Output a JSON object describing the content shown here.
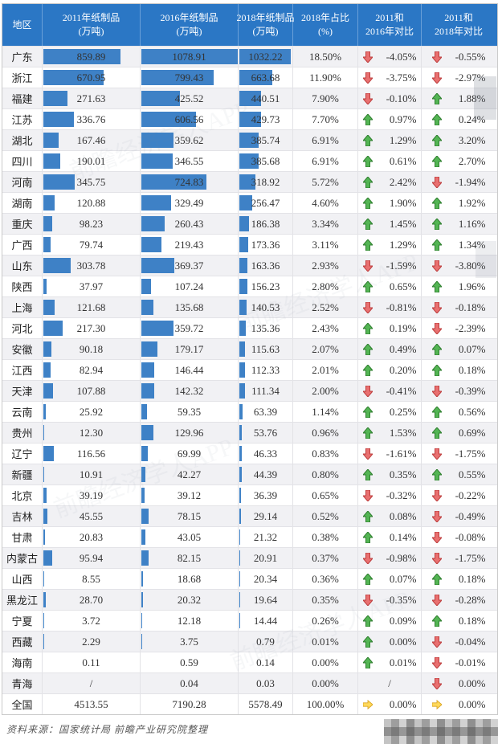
{
  "table": {
    "bar_scale_max": 1078.91,
    "bar_color": "#3E81C6",
    "header_bg": "#2B77C5",
    "up_color": "#4FAE4F",
    "down_color": "#E97070",
    "right_color": "#FFD95A",
    "columns": [
      {
        "id": "region",
        "line1": "地区",
        "line2": ""
      },
      {
        "id": "v2011",
        "line1": "2011年纸制品",
        "line2": "(万吨)"
      },
      {
        "id": "v2016",
        "line1": "2016年纸制品",
        "line2": "(万吨)"
      },
      {
        "id": "v2018",
        "line1": "2018年纸制品",
        "line2": "(万吨)"
      },
      {
        "id": "share",
        "line1": "2018年占比",
        "line2": "(%)"
      },
      {
        "id": "cmp2016",
        "line1": "2011和",
        "line2": "2016年对比"
      },
      {
        "id": "cmp2018",
        "line1": "2011和",
        "line2": "2018年对比"
      }
    ],
    "rows": [
      {
        "region": "广东",
        "v2011": "859.89",
        "v2016": "1078.91",
        "v2018": "1032.22",
        "share": "18.50%",
        "cmp2016": {
          "dir": "down",
          "val": "-4.05%"
        },
        "cmp2018": {
          "dir": "down",
          "val": "-0.55%"
        }
      },
      {
        "region": "浙江",
        "v2011": "670.95",
        "v2016": "799.43",
        "v2018": "663.68",
        "share": "11.90%",
        "cmp2016": {
          "dir": "down",
          "val": "-3.75%"
        },
        "cmp2018": {
          "dir": "down",
          "val": "-2.97%"
        }
      },
      {
        "region": "福建",
        "v2011": "271.63",
        "v2016": "425.52",
        "v2018": "440.51",
        "share": "7.90%",
        "cmp2016": {
          "dir": "down",
          "val": "-0.10%"
        },
        "cmp2018": {
          "dir": "up",
          "val": "1.88%"
        }
      },
      {
        "region": "江苏",
        "v2011": "336.76",
        "v2016": "606.56",
        "v2018": "429.73",
        "share": "7.70%",
        "cmp2016": {
          "dir": "up",
          "val": "0.97%"
        },
        "cmp2018": {
          "dir": "up",
          "val": "0.24%"
        }
      },
      {
        "region": "湖北",
        "v2011": "167.46",
        "v2016": "359.62",
        "v2018": "385.74",
        "share": "6.91%",
        "cmp2016": {
          "dir": "up",
          "val": "1.29%"
        },
        "cmp2018": {
          "dir": "up",
          "val": "3.20%"
        }
      },
      {
        "region": "四川",
        "v2011": "190.01",
        "v2016": "346.55",
        "v2018": "385.68",
        "share": "6.91%",
        "cmp2016": {
          "dir": "up",
          "val": "0.61%"
        },
        "cmp2018": {
          "dir": "up",
          "val": "2.70%"
        }
      },
      {
        "region": "河南",
        "v2011": "345.75",
        "v2016": "724.83",
        "v2018": "318.92",
        "share": "5.72%",
        "cmp2016": {
          "dir": "up",
          "val": "2.42%"
        },
        "cmp2018": {
          "dir": "down",
          "val": "-1.94%"
        }
      },
      {
        "region": "湖南",
        "v2011": "120.88",
        "v2016": "329.49",
        "v2018": "256.47",
        "share": "4.60%",
        "cmp2016": {
          "dir": "up",
          "val": "1.90%"
        },
        "cmp2018": {
          "dir": "up",
          "val": "1.92%"
        }
      },
      {
        "region": "重庆",
        "v2011": "98.23",
        "v2016": "260.43",
        "v2018": "186.38",
        "share": "3.34%",
        "cmp2016": {
          "dir": "up",
          "val": "1.45%"
        },
        "cmp2018": {
          "dir": "up",
          "val": "1.16%"
        }
      },
      {
        "region": "广西",
        "v2011": "79.74",
        "v2016": "219.43",
        "v2018": "173.36",
        "share": "3.11%",
        "cmp2016": {
          "dir": "up",
          "val": "1.29%"
        },
        "cmp2018": {
          "dir": "up",
          "val": "1.34%"
        }
      },
      {
        "region": "山东",
        "v2011": "303.78",
        "v2016": "369.37",
        "v2018": "163.36",
        "share": "2.93%",
        "cmp2016": {
          "dir": "down",
          "val": "-1.59%"
        },
        "cmp2018": {
          "dir": "down",
          "val": "-3.80%"
        }
      },
      {
        "region": "陕西",
        "v2011": "37.97",
        "v2016": "107.24",
        "v2018": "156.23",
        "share": "2.80%",
        "cmp2016": {
          "dir": "up",
          "val": "0.65%"
        },
        "cmp2018": {
          "dir": "up",
          "val": "1.96%"
        }
      },
      {
        "region": "上海",
        "v2011": "121.68",
        "v2016": "135.68",
        "v2018": "140.53",
        "share": "2.52%",
        "cmp2016": {
          "dir": "down",
          "val": "-0.81%"
        },
        "cmp2018": {
          "dir": "down",
          "val": "-0.18%"
        }
      },
      {
        "region": "河北",
        "v2011": "217.30",
        "v2016": "359.72",
        "v2018": "135.36",
        "share": "2.43%",
        "cmp2016": {
          "dir": "up",
          "val": "0.19%"
        },
        "cmp2018": {
          "dir": "down",
          "val": "-2.39%"
        }
      },
      {
        "region": "安徽",
        "v2011": "90.18",
        "v2016": "179.17",
        "v2018": "115.63",
        "share": "2.07%",
        "cmp2016": {
          "dir": "up",
          "val": "0.49%"
        },
        "cmp2018": {
          "dir": "up",
          "val": "0.07%"
        }
      },
      {
        "region": "江西",
        "v2011": "82.94",
        "v2016": "146.44",
        "v2018": "112.33",
        "share": "2.01%",
        "cmp2016": {
          "dir": "up",
          "val": "0.20%"
        },
        "cmp2018": {
          "dir": "up",
          "val": "0.18%"
        }
      },
      {
        "region": "天津",
        "v2011": "107.88",
        "v2016": "142.32",
        "v2018": "111.34",
        "share": "2.00%",
        "cmp2016": {
          "dir": "down",
          "val": "-0.41%"
        },
        "cmp2018": {
          "dir": "down",
          "val": "-0.39%"
        }
      },
      {
        "region": "云南",
        "v2011": "25.92",
        "v2016": "59.35",
        "v2018": "63.39",
        "share": "1.14%",
        "cmp2016": {
          "dir": "up",
          "val": "0.25%"
        },
        "cmp2018": {
          "dir": "up",
          "val": "0.56%"
        }
      },
      {
        "region": "贵州",
        "v2011": "12.30",
        "v2016": "129.96",
        "v2018": "53.76",
        "share": "0.96%",
        "cmp2016": {
          "dir": "up",
          "val": "1.53%"
        },
        "cmp2018": {
          "dir": "up",
          "val": "0.69%"
        }
      },
      {
        "region": "辽宁",
        "v2011": "116.56",
        "v2016": "69.99",
        "v2018": "46.33",
        "share": "0.83%",
        "cmp2016": {
          "dir": "down",
          "val": "-1.61%"
        },
        "cmp2018": {
          "dir": "down",
          "val": "-1.75%"
        }
      },
      {
        "region": "新疆",
        "v2011": "10.91",
        "v2016": "42.27",
        "v2018": "44.39",
        "share": "0.80%",
        "cmp2016": {
          "dir": "up",
          "val": "0.35%"
        },
        "cmp2018": {
          "dir": "up",
          "val": "0.55%"
        }
      },
      {
        "region": "北京",
        "v2011": "39.19",
        "v2016": "39.12",
        "v2018": "36.39",
        "share": "0.65%",
        "cmp2016": {
          "dir": "down",
          "val": "-0.32%"
        },
        "cmp2018": {
          "dir": "down",
          "val": "-0.22%"
        }
      },
      {
        "region": "吉林",
        "v2011": "45.55",
        "v2016": "78.15",
        "v2018": "29.14",
        "share": "0.52%",
        "cmp2016": {
          "dir": "up",
          "val": "0.08%"
        },
        "cmp2018": {
          "dir": "down",
          "val": "-0.49%"
        }
      },
      {
        "region": "甘肃",
        "v2011": "20.83",
        "v2016": "43.05",
        "v2018": "21.32",
        "share": "0.38%",
        "cmp2016": {
          "dir": "up",
          "val": "0.14%"
        },
        "cmp2018": {
          "dir": "down",
          "val": "-0.08%"
        }
      },
      {
        "region": "内蒙古",
        "v2011": "95.94",
        "v2016": "82.15",
        "v2018": "20.91",
        "share": "0.37%",
        "cmp2016": {
          "dir": "down",
          "val": "-0.98%"
        },
        "cmp2018": {
          "dir": "down",
          "val": "-1.75%"
        }
      },
      {
        "region": "山西",
        "v2011": "8.55",
        "v2016": "18.68",
        "v2018": "20.34",
        "share": "0.36%",
        "cmp2016": {
          "dir": "up",
          "val": "0.07%"
        },
        "cmp2018": {
          "dir": "up",
          "val": "0.18%"
        }
      },
      {
        "region": "黑龙江",
        "v2011": "28.70",
        "v2016": "20.32",
        "v2018": "19.64",
        "share": "0.35%",
        "cmp2016": {
          "dir": "down",
          "val": "-0.35%"
        },
        "cmp2018": {
          "dir": "down",
          "val": "-0.28%"
        }
      },
      {
        "region": "宁夏",
        "v2011": "3.72",
        "v2016": "12.18",
        "v2018": "14.44",
        "share": "0.26%",
        "cmp2016": {
          "dir": "up",
          "val": "0.09%"
        },
        "cmp2018": {
          "dir": "up",
          "val": "0.18%"
        }
      },
      {
        "region": "西藏",
        "v2011": "2.29",
        "v2016": "3.75",
        "v2018": "0.79",
        "share": "0.01%",
        "cmp2016": {
          "dir": "up",
          "val": "0.00%"
        },
        "cmp2018": {
          "dir": "down",
          "val": "-0.04%"
        }
      },
      {
        "region": "海南",
        "v2011": "0.11",
        "v2016": "0.59",
        "v2018": "0.14",
        "share": "0.00%",
        "cmp2016": {
          "dir": "up",
          "val": "0.01%"
        },
        "cmp2018": {
          "dir": "down",
          "val": "-0.01%"
        }
      },
      {
        "region": "青海",
        "v2011": "/",
        "v2016": "0.04",
        "v2018": "0.03",
        "share": "0.00%",
        "cmp2016": {
          "dir": "none",
          "val": "/"
        },
        "cmp2018": {
          "dir": "down",
          "val": "0.00%"
        }
      },
      {
        "region": "全国",
        "v2011": "4513.55",
        "v2016": "7190.28",
        "v2018": "5578.49",
        "share": "100.00%",
        "is_total": true,
        "cmp2016": {
          "dir": "right",
          "val": "0.00%"
        },
        "cmp2018": {
          "dir": "right",
          "val": "0.00%"
        }
      }
    ]
  },
  "chart_data": {
    "type": "table",
    "title": "各地区纸制品产量及对比",
    "categories": [
      "广东",
      "浙江",
      "福建",
      "江苏",
      "湖北",
      "四川",
      "河南",
      "湖南",
      "重庆",
      "广西",
      "山东",
      "陕西",
      "上海",
      "河北",
      "安徽",
      "江西",
      "天津",
      "云南",
      "贵州",
      "辽宁",
      "新疆",
      "北京",
      "吉林",
      "甘肃",
      "内蒙古",
      "山西",
      "黑龙江",
      "宁夏",
      "西藏",
      "海南",
      "青海",
      "全国"
    ],
    "series": [
      {
        "name": "2011年纸制品(万吨)",
        "values": [
          859.89,
          670.95,
          271.63,
          336.76,
          167.46,
          190.01,
          345.75,
          120.88,
          98.23,
          79.74,
          303.78,
          37.97,
          121.68,
          217.3,
          90.18,
          82.94,
          107.88,
          25.92,
          12.3,
          116.56,
          10.91,
          39.19,
          45.55,
          20.83,
          95.94,
          8.55,
          28.7,
          3.72,
          2.29,
          0.11,
          null,
          4513.55
        ]
      },
      {
        "name": "2016年纸制品(万吨)",
        "values": [
          1078.91,
          799.43,
          425.52,
          606.56,
          359.62,
          346.55,
          724.83,
          329.49,
          260.43,
          219.43,
          369.37,
          107.24,
          135.68,
          359.72,
          179.17,
          146.44,
          142.32,
          59.35,
          129.96,
          69.99,
          42.27,
          39.12,
          78.15,
          43.05,
          82.15,
          18.68,
          20.32,
          12.18,
          3.75,
          0.59,
          0.04,
          7190.28
        ]
      },
      {
        "name": "2018年纸制品(万吨)",
        "values": [
          1032.22,
          663.68,
          440.51,
          429.73,
          385.74,
          385.68,
          318.92,
          256.47,
          186.38,
          173.36,
          163.36,
          156.23,
          140.53,
          135.36,
          115.63,
          112.33,
          111.34,
          63.39,
          53.76,
          46.33,
          44.39,
          36.39,
          29.14,
          21.32,
          20.91,
          20.34,
          19.64,
          14.44,
          0.79,
          0.14,
          0.03,
          5578.49
        ]
      },
      {
        "name": "2018年占比(%)",
        "values": [
          18.5,
          11.9,
          7.9,
          7.7,
          6.91,
          6.91,
          5.72,
          4.6,
          3.34,
          3.11,
          2.93,
          2.8,
          2.52,
          2.43,
          2.07,
          2.01,
          2.0,
          1.14,
          0.96,
          0.83,
          0.8,
          0.65,
          0.52,
          0.38,
          0.37,
          0.36,
          0.35,
          0.26,
          0.01,
          0.0,
          0.0,
          100.0
        ]
      },
      {
        "name": "2011和2016年对比(%)",
        "values": [
          -4.05,
          -3.75,
          -0.1,
          0.97,
          1.29,
          0.61,
          2.42,
          1.9,
          1.45,
          1.29,
          -1.59,
          0.65,
          -0.81,
          0.19,
          0.49,
          0.2,
          -0.41,
          0.25,
          1.53,
          -1.61,
          0.35,
          -0.32,
          0.08,
          0.14,
          -0.98,
          0.07,
          -0.35,
          0.09,
          0.0,
          0.01,
          null,
          0.0
        ]
      },
      {
        "name": "2011和2018年对比(%)",
        "values": [
          -0.55,
          -2.97,
          1.88,
          0.24,
          3.2,
          2.7,
          -1.94,
          1.92,
          1.16,
          1.34,
          -3.8,
          1.96,
          -0.18,
          -2.39,
          0.07,
          0.18,
          -0.39,
          0.56,
          0.69,
          -1.75,
          0.55,
          -0.22,
          -0.49,
          -0.08,
          -1.75,
          0.18,
          -0.28,
          0.18,
          -0.04,
          -0.01,
          0.0,
          0.0
        ]
      }
    ],
    "bar_scale_max": 1078.91,
    "legend_position": "none",
    "grid": true
  },
  "footer": {
    "source": "资料来源：国家统计局 前瞻产业研究院整理"
  },
  "watermark": {
    "text": "前瞻经济学人APP"
  }
}
